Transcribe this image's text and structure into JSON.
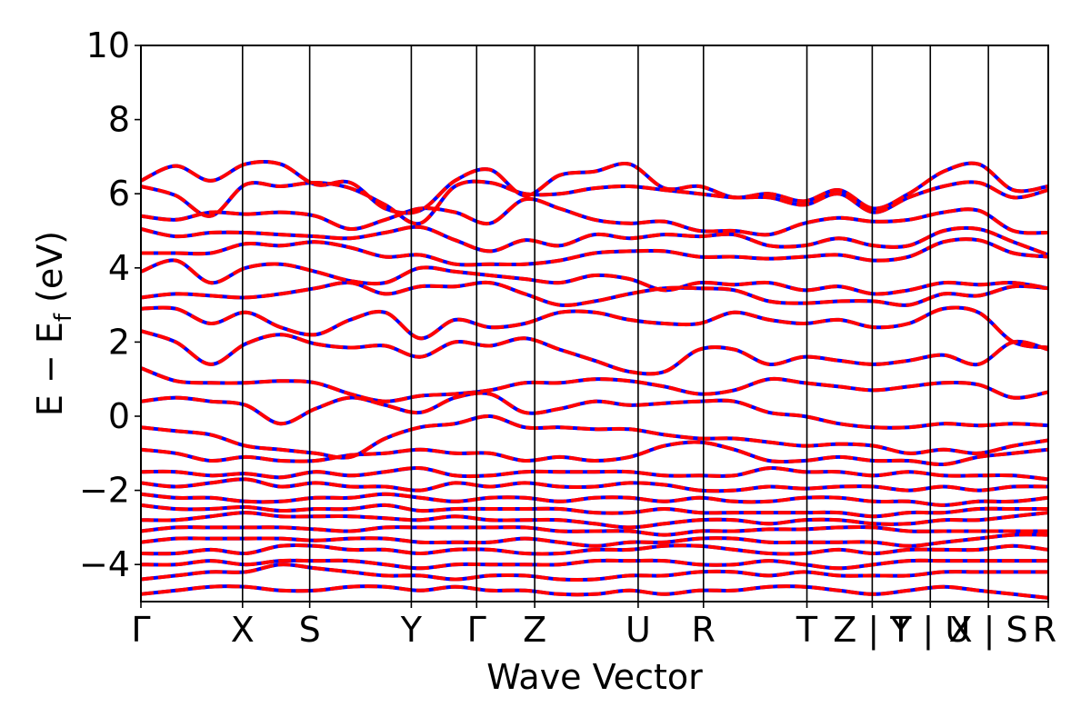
{
  "chart_data": {
    "type": "line",
    "xlabel": "Wave Vector",
    "ylabel_main": "E − E",
    "ylabel_sub": "f",
    "ylabel_unit": " (eV)",
    "ylim": [
      -5,
      10
    ],
    "yticks": [
      10,
      8,
      6,
      4,
      2,
      0,
      -2,
      -4
    ],
    "ytick_labels": [
      "10",
      "8",
      "6",
      "4",
      "2",
      "0",
      "−2",
      "−4"
    ],
    "grid": false,
    "kpath_ticks": [
      {
        "label": "Γ",
        "x": 0
      },
      {
        "label": "X",
        "x": 0.112
      },
      {
        "label": "S",
        "x": 0.186
      },
      {
        "label": "Y",
        "x": 0.298
      },
      {
        "label": "Γ",
        "x": 0.37
      },
      {
        "label": "Z",
        "x": 0.434
      },
      {
        "label": "U",
        "x": 0.548
      },
      {
        "label": "R",
        "x": 0.62
      },
      {
        "label": "T",
        "x": 0.734
      },
      {
        "label": "Z | Y",
        "x": 0.806
      },
      {
        "label": "T | U",
        "x": 0.87
      },
      {
        "label": "X | S",
        "x": 0.934
      },
      {
        "label": "R",
        "x": 1.0
      }
    ],
    "series": [
      {
        "color": "#0000ff",
        "style": "solid"
      },
      {
        "color": "#ff0000",
        "style": "dashed"
      }
    ],
    "bands_sampled": [
      [
        6.35,
        6.75,
        6.35,
        6.8,
        6.8,
        6.25,
        6.3,
        5.6,
        5.55,
        6.35,
        6.65,
        5.95,
        6.5,
        6.6,
        6.8,
        6.15,
        6.2,
        5.9,
        6.0,
        5.8,
        6.1,
        5.6,
        6.0,
        6.6,
        6.8,
        6.1,
        6.2
      ],
      [
        6.2,
        5.95,
        5.4,
        6.25,
        6.2,
        6.3,
        6.15,
        5.7,
        5.2,
        6.2,
        6.3,
        6.0,
        6.0,
        6.15,
        6.2,
        6.1,
        6.0,
        5.9,
        5.9,
        5.7,
        6.0,
        5.5,
        5.9,
        6.2,
        6.3,
        5.9,
        6.1
      ],
      [
        5.4,
        5.3,
        5.5,
        5.45,
        5.5,
        5.4,
        5.05,
        5.3,
        5.6,
        5.5,
        5.2,
        5.85,
        5.6,
        5.3,
        5.2,
        5.25,
        5.0,
        5.0,
        4.9,
        5.2,
        5.35,
        5.25,
        5.3,
        5.5,
        5.55,
        5.0,
        4.95
      ],
      [
        5.05,
        4.85,
        4.95,
        4.95,
        4.9,
        4.85,
        4.8,
        4.95,
        5.1,
        4.75,
        4.45,
        4.75,
        4.6,
        4.9,
        4.8,
        4.9,
        4.85,
        4.9,
        4.6,
        4.6,
        4.8,
        4.6,
        4.6,
        5.0,
        5.05,
        4.7,
        4.35
      ],
      [
        4.4,
        4.4,
        4.4,
        4.65,
        4.6,
        4.7,
        4.55,
        4.3,
        4.35,
        4.1,
        4.1,
        4.1,
        4.2,
        4.4,
        4.45,
        4.45,
        4.3,
        4.3,
        4.25,
        4.3,
        4.35,
        4.2,
        4.3,
        4.7,
        4.75,
        4.4,
        4.3
      ],
      [
        3.9,
        4.2,
        3.6,
        4.0,
        4.1,
        3.9,
        3.65,
        3.6,
        4.0,
        3.9,
        3.8,
        3.7,
        3.6,
        3.8,
        3.7,
        3.4,
        3.6,
        3.55,
        3.6,
        3.4,
        3.5,
        3.3,
        3.4,
        3.6,
        3.55,
        3.6,
        3.45
      ],
      [
        3.2,
        3.3,
        3.25,
        3.2,
        3.3,
        3.45,
        3.6,
        3.3,
        3.5,
        3.5,
        3.6,
        3.3,
        3.0,
        3.1,
        3.3,
        3.45,
        3.45,
        3.4,
        3.1,
        3.05,
        3.1,
        3.1,
        3.0,
        3.3,
        3.25,
        3.5,
        3.45
      ],
      [
        2.9,
        2.9,
        2.5,
        2.8,
        2.4,
        2.2,
        2.6,
        2.8,
        2.1,
        2.6,
        2.4,
        2.5,
        2.8,
        2.8,
        2.6,
        2.5,
        2.5,
        2.8,
        2.6,
        2.5,
        2.6,
        2.4,
        2.5,
        2.9,
        2.8,
        2.0,
        1.85
      ],
      [
        2.3,
        2.0,
        1.4,
        1.95,
        2.2,
        1.95,
        1.85,
        1.9,
        1.6,
        2.0,
        1.9,
        2.1,
        1.8,
        1.5,
        1.2,
        1.2,
        1.8,
        1.8,
        1.4,
        1.6,
        1.5,
        1.4,
        1.5,
        1.65,
        1.4,
        2.0,
        1.8
      ],
      [
        1.3,
        0.95,
        0.9,
        0.9,
        0.95,
        0.9,
        0.6,
        0.4,
        0.55,
        0.6,
        0.7,
        0.9,
        0.9,
        1.0,
        0.95,
        0.8,
        0.6,
        0.7,
        1.0,
        0.9,
        0.8,
        0.7,
        0.8,
        0.9,
        0.85,
        0.5,
        0.65
      ],
      [
        0.4,
        0.5,
        0.4,
        0.3,
        -0.2,
        0.2,
        0.5,
        0.3,
        0.1,
        0.5,
        0.6,
        0.1,
        0.2,
        0.4,
        0.3,
        0.35,
        0.4,
        0.4,
        0.1,
        0.0,
        -0.2,
        -0.3,
        -0.3,
        -0.2,
        -0.25,
        -0.2,
        -0.25
      ],
      [
        -0.3,
        -0.4,
        -0.5,
        -0.8,
        -0.9,
        -1.0,
        -1.1,
        -0.6,
        -0.3,
        -0.2,
        0.0,
        -0.3,
        -0.3,
        -0.35,
        -0.35,
        -0.5,
        -0.6,
        -0.6,
        -0.7,
        -0.8,
        -0.75,
        -0.8,
        -1.0,
        -0.9,
        -1.0,
        -0.8,
        -0.65
      ],
      [
        -0.9,
        -1.0,
        -1.2,
        -1.1,
        -1.2,
        -1.2,
        -1.05,
        -1.0,
        -0.9,
        -1.0,
        -1.0,
        -1.2,
        -1.1,
        -1.2,
        -1.1,
        -0.8,
        -0.7,
        -0.9,
        -1.2,
        -1.2,
        -1.1,
        -1.2,
        -1.2,
        -1.3,
        -1.1,
        -1.0,
        -0.9
      ],
      [
        -1.5,
        -1.5,
        -1.6,
        -1.55,
        -1.65,
        -1.5,
        -1.6,
        -1.5,
        -1.4,
        -1.6,
        -1.6,
        -1.5,
        -1.5,
        -1.5,
        -1.5,
        -1.6,
        -1.6,
        -1.6,
        -1.4,
        -1.5,
        -1.5,
        -1.6,
        -1.5,
        -1.6,
        -1.6,
        -1.6,
        -1.7
      ],
      [
        -1.8,
        -1.9,
        -1.8,
        -1.7,
        -1.9,
        -1.8,
        -1.9,
        -1.9,
        -2.0,
        -1.8,
        -1.9,
        -1.8,
        -1.9,
        -1.9,
        -1.8,
        -1.85,
        -2.0,
        -2.0,
        -1.9,
        -1.95,
        -1.9,
        -1.9,
        -2.0,
        -1.9,
        -2.0,
        -1.9,
        -1.9
      ],
      [
        -2.1,
        -2.2,
        -2.2,
        -2.3,
        -2.3,
        -2.2,
        -2.2,
        -2.1,
        -2.2,
        -2.3,
        -2.2,
        -2.2,
        -2.3,
        -2.2,
        -2.2,
        -2.3,
        -2.2,
        -2.3,
        -2.3,
        -2.2,
        -2.2,
        -2.3,
        -2.3,
        -2.4,
        -2.3,
        -2.3,
        -2.2
      ],
      [
        -2.4,
        -2.5,
        -2.5,
        -2.45,
        -2.55,
        -2.5,
        -2.5,
        -2.4,
        -2.55,
        -2.5,
        -2.5,
        -2.5,
        -2.5,
        -2.6,
        -2.6,
        -2.5,
        -2.6,
        -2.6,
        -2.6,
        -2.6,
        -2.6,
        -2.7,
        -2.6,
        -2.6,
        -2.5,
        -2.5,
        -2.5
      ],
      [
        -2.8,
        -2.8,
        -2.7,
        -2.6,
        -2.7,
        -2.7,
        -2.7,
        -2.75,
        -2.8,
        -2.7,
        -2.8,
        -2.8,
        -2.8,
        -2.9,
        -3.0,
        -2.9,
        -2.8,
        -2.8,
        -2.9,
        -2.8,
        -2.8,
        -2.9,
        -2.9,
        -2.8,
        -2.8,
        -2.7,
        -2.6
      ],
      [
        -3.1,
        -3.0,
        -3.0,
        -3.0,
        -3.0,
        -3.05,
        -3.1,
        -3.0,
        -3.0,
        -3.0,
        -3.0,
        -3.0,
        -3.1,
        -3.1,
        -3.1,
        -3.2,
        -3.1,
        -3.1,
        -3.05,
        -3.05,
        -3.0,
        -3.0,
        -3.1,
        -3.1,
        -3.1,
        -3.1,
        -3.1
      ],
      [
        -3.4,
        -3.3,
        -3.3,
        -3.3,
        -3.3,
        -3.35,
        -3.3,
        -3.3,
        -3.4,
        -3.4,
        -3.4,
        -3.3,
        -3.4,
        -3.5,
        -3.4,
        -3.4,
        -3.3,
        -3.3,
        -3.4,
        -3.4,
        -3.4,
        -3.4,
        -3.5,
        -3.4,
        -3.3,
        -3.2,
        -3.2
      ],
      [
        -3.7,
        -3.7,
        -3.6,
        -3.7,
        -3.5,
        -3.5,
        -3.6,
        -3.6,
        -3.7,
        -3.6,
        -3.6,
        -3.7,
        -3.7,
        -3.6,
        -3.6,
        -3.5,
        -3.5,
        -3.6,
        -3.7,
        -3.7,
        -3.6,
        -3.7,
        -3.6,
        -3.6,
        -3.6,
        -3.5,
        -3.6
      ],
      [
        -4.0,
        -4.0,
        -3.9,
        -4.0,
        -3.9,
        -3.9,
        -3.9,
        -4.0,
        -4.1,
        -4.0,
        -4.0,
        -4.0,
        -4.0,
        -3.9,
        -3.9,
        -3.9,
        -4.0,
        -4.0,
        -3.9,
        -4.0,
        -4.1,
        -4.0,
        -3.9,
        -3.9,
        -3.9,
        -3.9,
        -3.9
      ],
      [
        -4.4,
        -4.3,
        -4.2,
        -4.2,
        -4.0,
        -4.1,
        -4.2,
        -4.3,
        -4.3,
        -4.4,
        -4.3,
        -4.3,
        -4.4,
        -4.4,
        -4.3,
        -4.3,
        -4.2,
        -4.2,
        -4.3,
        -4.2,
        -4.3,
        -4.3,
        -4.3,
        -4.2,
        -4.2,
        -4.2,
        -4.2
      ],
      [
        -4.8,
        -4.7,
        -4.6,
        -4.6,
        -4.7,
        -4.7,
        -4.6,
        -4.6,
        -4.7,
        -4.6,
        -4.7,
        -4.7,
        -4.8,
        -4.8,
        -4.7,
        -4.8,
        -4.7,
        -4.7,
        -4.6,
        -4.6,
        -4.7,
        -4.8,
        -4.7,
        -4.6,
        -4.7,
        -4.8,
        -4.9
      ]
    ]
  }
}
